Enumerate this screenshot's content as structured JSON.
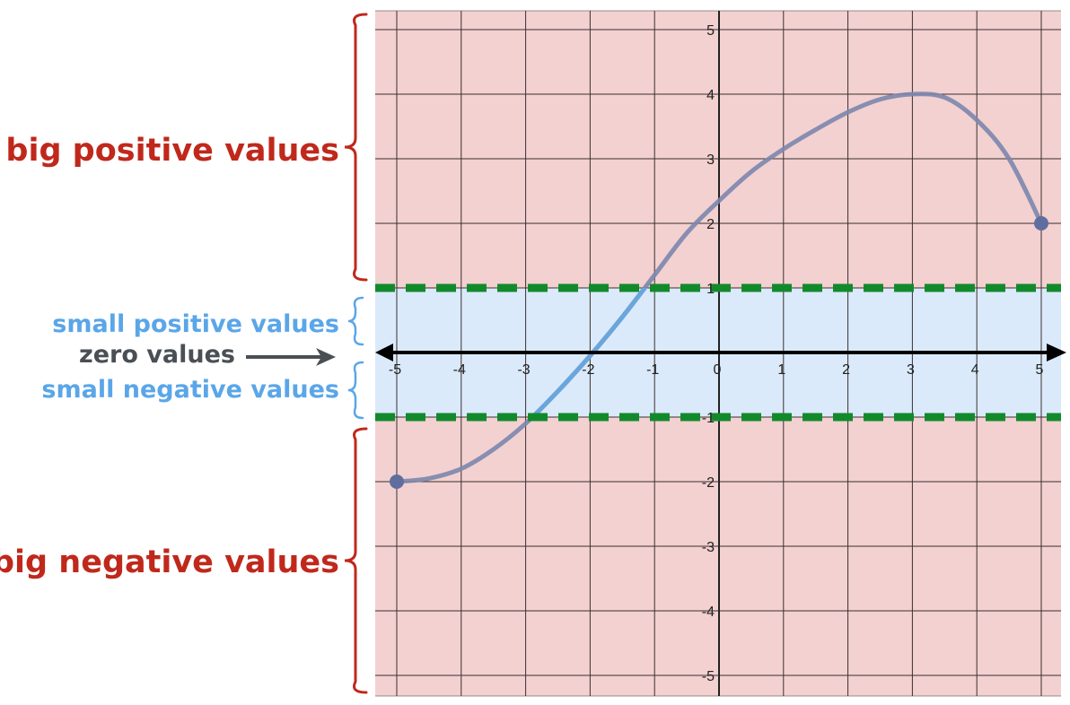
{
  "labels": {
    "big_positive": "big positive values",
    "small_positive": "small positive values",
    "zero": "zero values",
    "small_negative": "small negative values",
    "big_negative": "big negative values"
  },
  "colors": {
    "big_region": "#f3d1d0",
    "small_region": "#dbeafa",
    "big_label": "#c0281c",
    "small_label": "#5aa6e8",
    "zero_label": "#4a4f55",
    "threshold_line": "#128a2c",
    "curve": "#7c86ad",
    "curve_small": "#6aa6dc",
    "endpoint": "#5f6e9e",
    "axis": "#000000",
    "grid": "#3a3030"
  },
  "chart_data": {
    "type": "line",
    "xlim": [
      -5,
      5
    ],
    "ylim": [
      -5,
      5
    ],
    "x_ticks": [
      -5,
      -4,
      -3,
      -2,
      -1,
      0,
      1,
      2,
      3,
      4,
      5
    ],
    "y_ticks": [
      -5,
      -4,
      -3,
      -2,
      -1,
      1,
      2,
      3,
      4,
      5
    ],
    "grid": true,
    "thresholds": [
      1,
      -1
    ],
    "series": [
      {
        "x": [
          -5,
          -4.5,
          -4,
          -3.5,
          -3,
          -2.5,
          -2,
          -1.5,
          -1,
          -0.5,
          0,
          0.5,
          1,
          1.5,
          2,
          2.5,
          3,
          3.5,
          4,
          4.5,
          5
        ],
        "y": [
          -2,
          -1.95,
          -1.8,
          -1.5,
          -1.1,
          -0.6,
          -0.05,
          0.55,
          1.2,
          1.85,
          2.35,
          2.8,
          3.15,
          3.45,
          3.72,
          3.92,
          4.0,
          3.95,
          3.6,
          3.0,
          2.0
        ],
        "endpoints": [
          [
            -5,
            -2
          ],
          [
            5,
            2
          ]
        ]
      }
    ]
  }
}
